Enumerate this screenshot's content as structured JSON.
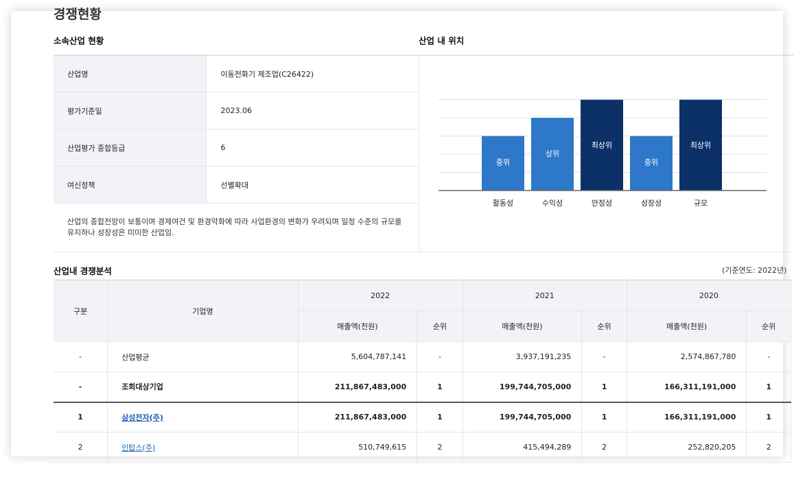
{
  "page_title": "경쟁현황",
  "industry": {
    "title": "소속산업 현황",
    "rows": [
      {
        "label": "산업명",
        "value": "이동전화기 제조업(C26422)"
      },
      {
        "label": "평가기준일",
        "value": "2023.06"
      },
      {
        "label": "산업평가 종합등급",
        "value": "6"
      },
      {
        "label": "여신정책",
        "value": "선별확대"
      }
    ],
    "summary": "산업의 종합전망이 보통이며 경제여건 및 환경악화에 따라 사업환경의 변화가 우려되며 일정 수준의 규모를 유지하나 성장성은 미미한 산업임."
  },
  "position": {
    "title": "산업 내 위치"
  },
  "chart_data": {
    "type": "bar",
    "categories": [
      "활동성",
      "수익성",
      "안정성",
      "성장성",
      "규모"
    ],
    "values": [
      3,
      4,
      5,
      3,
      5
    ],
    "labels": [
      "중위",
      "상위",
      "최상위",
      "중위",
      "최상위"
    ],
    "ylim": [
      0,
      5
    ],
    "grid": true,
    "colors": {
      "mid": "#2e78c9",
      "top": "#0c3169"
    }
  },
  "competition": {
    "title": "산업내 경쟁분석",
    "base_year": "(기준연도: 2022년)",
    "headers": {
      "division": "구분",
      "company": "기업명",
      "years": [
        "2022",
        "2021",
        "2020"
      ],
      "sales": "매출액(천원)",
      "rank": "순위"
    },
    "rows": [
      {
        "division": "-",
        "company": "산업평균",
        "link": false,
        "bold": false,
        "cells": [
          "5,604,787,141",
          "-",
          "3,937,191,235",
          "-",
          "2,574,867,780",
          "-"
        ]
      },
      {
        "division": "-",
        "company": "조회대상기업",
        "link": false,
        "bold": true,
        "cells": [
          "211,867,483,000",
          "1",
          "199,744,705,000",
          "1",
          "166,311,191,000",
          "1"
        ]
      },
      {
        "division": "1",
        "company": "삼성전자(주)",
        "link": true,
        "bold": true,
        "cells": [
          "211,867,483,000",
          "1",
          "199,744,705,000",
          "1",
          "166,311,191,000",
          "1"
        ]
      },
      {
        "division": "2",
        "company": "인탑스(주)",
        "link": true,
        "bold": false,
        "cells": [
          "510,749,615",
          "2",
          "415,494,289",
          "2",
          "252,820,205",
          "2"
        ]
      }
    ]
  }
}
